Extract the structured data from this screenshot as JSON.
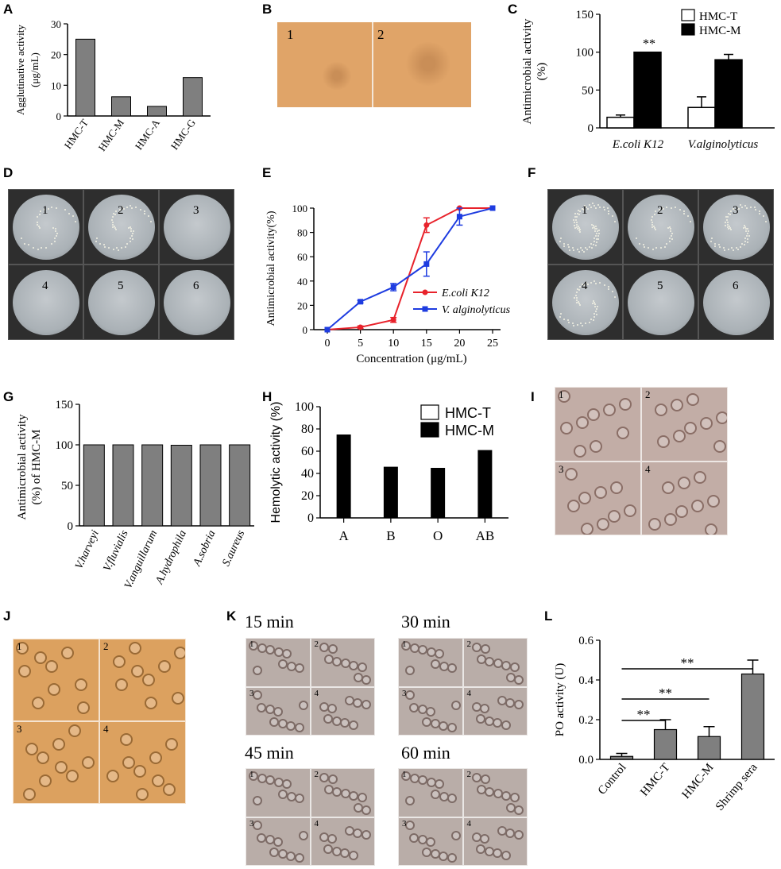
{
  "panel_labels": [
    "A",
    "B",
    "C",
    "D",
    "E",
    "F",
    "G",
    "H",
    "I",
    "J",
    "K",
    "L"
  ],
  "colors": {
    "gray_bar": "#7f7f7f",
    "black": "#000000",
    "red": "#e8222b",
    "blue": "#1e3ce0",
    "micro_orange": "#e2a46a",
    "micro_gray": "#b9aaa4",
    "plate_bg": "#3a3a3a"
  },
  "micro_b": {
    "labels": [
      "1",
      "2"
    ]
  },
  "plates_d": {
    "labels": [
      "1",
      "2",
      "3",
      "4",
      "5",
      "6"
    ]
  },
  "plates_f": {
    "labels": [
      "1",
      "2",
      "3",
      "4",
      "5",
      "6"
    ]
  },
  "micro_i": {
    "labels": [
      "1",
      "2",
      "3",
      "4"
    ]
  },
  "micro_j": {
    "labels": [
      "1",
      "2",
      "3",
      "4"
    ]
  },
  "micro_k": {
    "times": [
      "15 min",
      "30 min",
      "45 min",
      "60 min"
    ],
    "labels": [
      "1",
      "2",
      "3",
      "4"
    ]
  },
  "chart_data": [
    {
      "id": "A",
      "type": "bar",
      "categories": [
        "HMC-T",
        "HMC-M",
        "HMC-A",
        "HMC-G"
      ],
      "values": [
        25,
        6.25,
        3.125,
        12.5
      ],
      "ylabel": "Agglutinative activity (μg/mL)",
      "yticks": [
        0,
        10,
        20,
        30
      ],
      "ylim": [
        0,
        30
      ]
    },
    {
      "id": "C",
      "type": "bar",
      "categories": [
        "E.coli K12",
        "V.alginolyticus"
      ],
      "series": [
        {
          "name": "HMC-T",
          "values": [
            14,
            27
          ],
          "errors": [
            3,
            14
          ]
        },
        {
          "name": "HMC-M",
          "values": [
            100,
            90
          ],
          "errors": [
            0,
            7
          ]
        }
      ],
      "ylabel": "Antimicrobial activity (%)",
      "yticks": [
        0,
        50,
        100,
        150
      ],
      "ylim": [
        0,
        150
      ],
      "annotations": [
        "**",
        "**"
      ]
    },
    {
      "id": "E",
      "type": "line",
      "x": [
        0,
        5,
        10,
        15,
        20,
        25
      ],
      "series": [
        {
          "name": "E.coli K12",
          "values": [
            0,
            2,
            8,
            86,
            100,
            100
          ],
          "errors": [
            0,
            1,
            2,
            6,
            0,
            0
          ]
        },
        {
          "name": "V. alginolyticus",
          "values": [
            0,
            23,
            35,
            54,
            93,
            100
          ],
          "errors": [
            0,
            1,
            3,
            10,
            7,
            0
          ]
        }
      ],
      "xlabel": "Concentration (μg/mL)",
      "ylabel": "Antimicrobial activity(%)",
      "xticks": [
        0,
        5,
        10,
        15,
        20,
        25
      ],
      "yticks": [
        0,
        20,
        40,
        60,
        80,
        100
      ],
      "xlim": [
        0,
        25
      ],
      "ylim": [
        0,
        100
      ]
    },
    {
      "id": "G",
      "type": "bar",
      "categories": [
        "V.harveyi",
        "V.fluvialis",
        "V.anguillarum",
        "A.hydrophila",
        "A.sobria",
        "S.aureus"
      ],
      "values": [
        100,
        100,
        100,
        99.5,
        100,
        100
      ],
      "ylabel": "Antimicrobial activity (%) of HMC-M",
      "yticks": [
        0,
        50,
        100,
        150
      ],
      "ylim": [
        0,
        150
      ]
    },
    {
      "id": "H",
      "type": "bar",
      "categories": [
        "A",
        "B",
        "O",
        "AB"
      ],
      "series": [
        {
          "name": "HMC-T",
          "values": [
            0,
            0,
            0,
            0
          ]
        },
        {
          "name": "HMC-M",
          "values": [
            75,
            46,
            45,
            61
          ]
        }
      ],
      "ylabel": "Hemolytic activity (%)",
      "yticks": [
        0,
        20,
        40,
        60,
        80,
        100
      ],
      "ylim": [
        0,
        100
      ]
    },
    {
      "id": "L",
      "type": "bar",
      "categories": [
        "Control",
        "HMC-T",
        "HMC-M",
        "Shrimp sera"
      ],
      "values": [
        0.015,
        0.15,
        0.115,
        0.43
      ],
      "errors": [
        0.015,
        0.05,
        0.05,
        0.07
      ],
      "ylabel": "PO activity (U)",
      "yticks": [
        "0.0",
        "0.2",
        "0.4",
        "0.6"
      ],
      "ylim": [
        0,
        0.6
      ],
      "annotations": [
        "**",
        "**",
        "**"
      ]
    }
  ]
}
